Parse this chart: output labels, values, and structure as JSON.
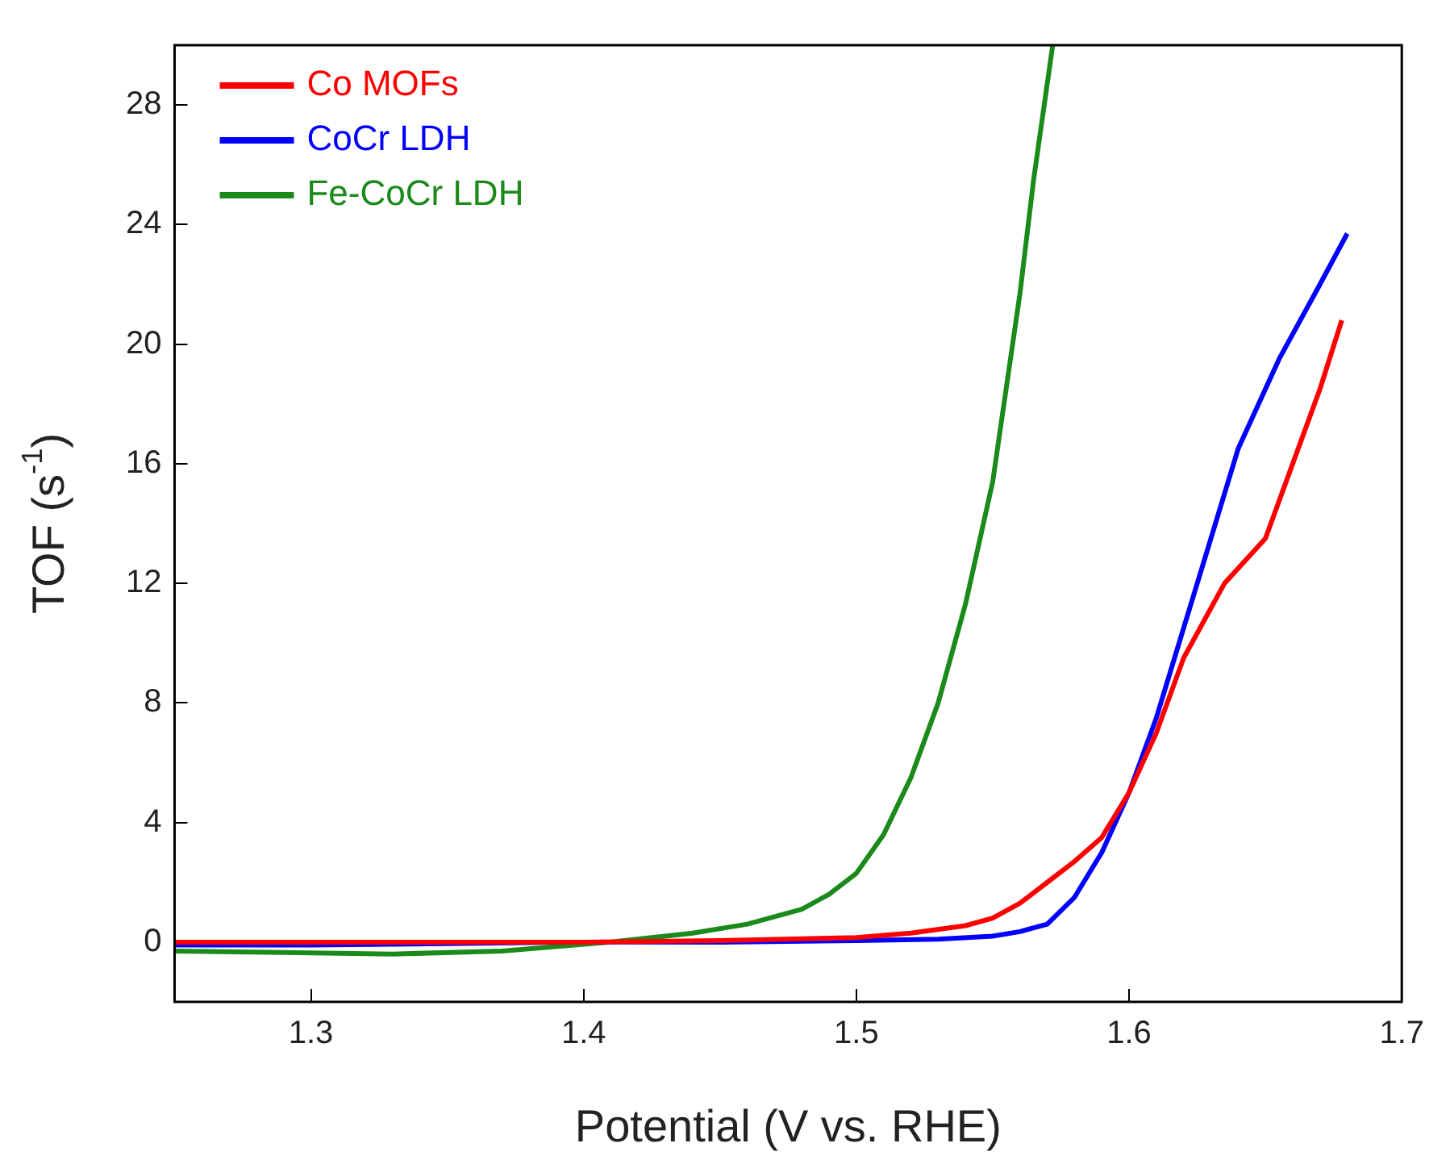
{
  "chart_data": {
    "type": "line",
    "xlabel": "Potential (V vs. RHE)",
    "ylabel": "TOF (s$^{-1}$)",
    "xlim": [
      1.25,
      1.7
    ],
    "xticks": [
      1.3,
      1.4,
      1.5,
      1.6,
      1.7
    ],
    "ylim": [
      -2,
      30
    ],
    "yticks": [
      0,
      4,
      8,
      12,
      16,
      20,
      24,
      28
    ],
    "grid": false,
    "legend": "top left",
    "marker": "none",
    "line_style": "solid",
    "series": [
      {
        "name": "Co MOFs",
        "color": "#ff0000",
        "x": [
          1.25,
          1.3,
          1.35,
          1.4,
          1.45,
          1.5,
          1.52,
          1.54,
          1.55,
          1.56,
          1.57,
          1.58,
          1.59,
          1.6,
          1.61,
          1.62,
          1.635,
          1.65,
          1.66,
          1.67,
          1.678
        ],
        "values": [
          0,
          0,
          0,
          0,
          0.05,
          0.15,
          0.3,
          0.55,
          0.8,
          1.3,
          2,
          2.7,
          3.5,
          5,
          7,
          9.5,
          12,
          13.5,
          16,
          18.5,
          20.8
        ]
      },
      {
        "name": "CoCr LDH",
        "color": "#0000ff",
        "x": [
          1.25,
          1.3,
          1.35,
          1.4,
          1.45,
          1.5,
          1.53,
          1.55,
          1.56,
          1.57,
          1.58,
          1.59,
          1.6,
          1.61,
          1.62,
          1.63,
          1.64,
          1.655,
          1.67,
          1.68
        ],
        "values": [
          -0.1,
          -0.1,
          -0.05,
          0,
          0,
          0.05,
          0.1,
          0.2,
          0.35,
          0.6,
          1.5,
          3,
          5,
          7.5,
          10.5,
          13.5,
          16.5,
          19.5,
          22,
          23.7
        ]
      },
      {
        "name": "Fe-CoCr LDH",
        "color": "#1a8a1a",
        "x": [
          1.25,
          1.29,
          1.33,
          1.37,
          1.41,
          1.44,
          1.46,
          1.48,
          1.49,
          1.5,
          1.51,
          1.52,
          1.53,
          1.54,
          1.55,
          1.56,
          1.565,
          1.572
        ],
        "values": [
          -0.3,
          -0.35,
          -0.4,
          -0.3,
          0,
          0.3,
          0.6,
          1.1,
          1.6,
          2.3,
          3.6,
          5.5,
          8,
          11.3,
          15.4,
          21.7,
          25.5,
          30
        ]
      }
    ]
  }
}
